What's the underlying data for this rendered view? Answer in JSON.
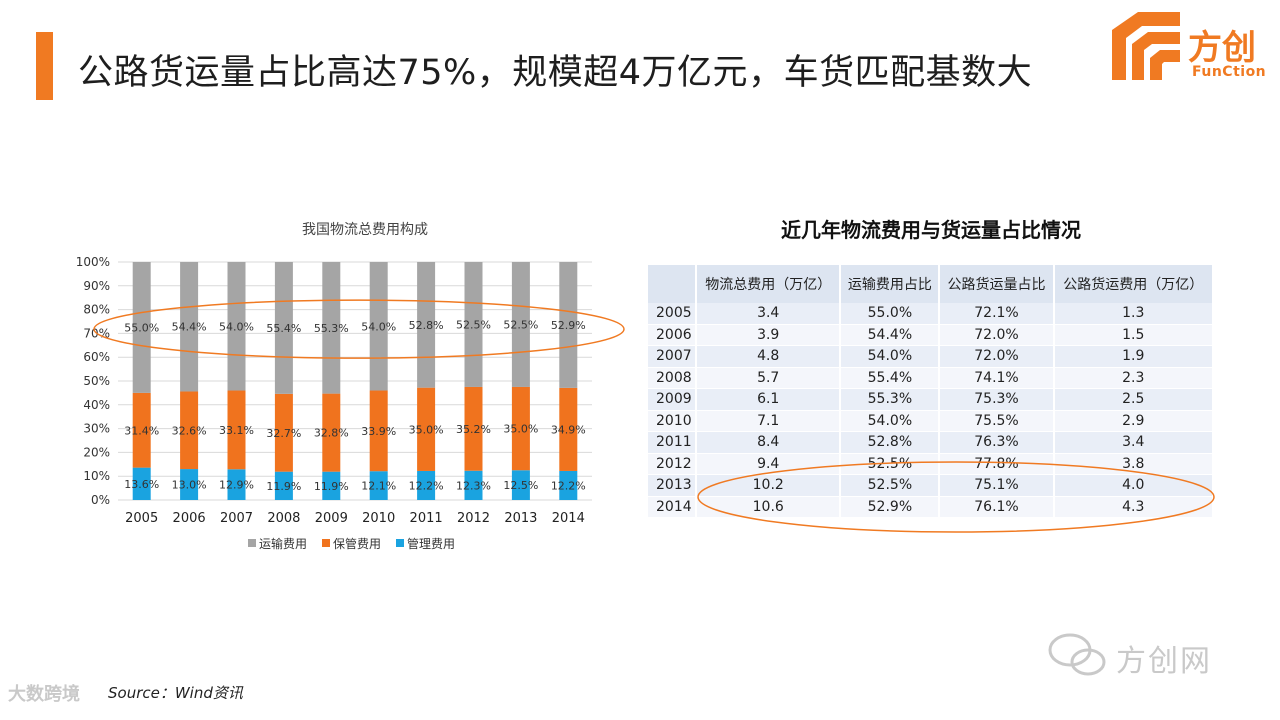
{
  "slide": {
    "title": "公路货运量占比高达75%，规模超4万亿元，车货匹配基数大",
    "source": "Source：Wind资讯",
    "accent_color": "#f07a22"
  },
  "logo": {
    "text": "方创",
    "sub": "FunCtion",
    "icon": "function-logo-icon"
  },
  "watermarks": {
    "left": "大数跨境",
    "right": "方创网",
    "right_icon": "wechat-icon"
  },
  "chart_data": {
    "type": "bar",
    "stacked": true,
    "percent": true,
    "title": "我国物流总费用构成",
    "categories": [
      "2005",
      "2006",
      "2007",
      "2008",
      "2009",
      "2010",
      "2011",
      "2012",
      "2013",
      "2014"
    ],
    "series": [
      {
        "name": "管理费用",
        "color": "#1aa3e0",
        "values": [
          13.6,
          13.0,
          12.9,
          11.9,
          11.9,
          12.1,
          12.2,
          12.3,
          12.5,
          12.2
        ]
      },
      {
        "name": "保管费用",
        "color": "#f0731e",
        "values": [
          31.4,
          32.6,
          33.1,
          32.7,
          32.8,
          33.9,
          35.0,
          35.2,
          35.0,
          34.9
        ]
      },
      {
        "name": "运输费用",
        "color": "#a5a5a5",
        "values": [
          55.0,
          54.4,
          54.0,
          55.4,
          55.3,
          54.0,
          52.8,
          52.5,
          52.5,
          52.9
        ]
      }
    ],
    "yticks": [
      "0%",
      "10%",
      "20%",
      "30%",
      "40%",
      "50%",
      "60%",
      "70%",
      "80%",
      "90%",
      "100%"
    ],
    "ylim": [
      0,
      100
    ],
    "grid": true,
    "legend": "bottom",
    "legend_items": [
      "运输费用",
      "保管费用",
      "管理费用"
    ],
    "highlight_color": "#f07a22"
  },
  "table": {
    "title": "近几年物流费用与货运量占比情况",
    "columns": [
      "",
      "物流总费用（万亿）",
      "运输费用占比",
      "公路货运量占比",
      "公路货运费用（万亿）"
    ],
    "rows": [
      [
        "2005",
        "3.4",
        "55.0%",
        "72.1%",
        "1.3"
      ],
      [
        "2006",
        "3.9",
        "54.4%",
        "72.0%",
        "1.5"
      ],
      [
        "2007",
        "4.8",
        "54.0%",
        "72.0%",
        "1.9"
      ],
      [
        "2008",
        "5.7",
        "55.4%",
        "74.1%",
        "2.3"
      ],
      [
        "2009",
        "6.1",
        "55.3%",
        "75.3%",
        "2.5"
      ],
      [
        "2010",
        "7.1",
        "54.0%",
        "75.5%",
        "2.9"
      ],
      [
        "2011",
        "8.4",
        "52.8%",
        "76.3%",
        "3.4"
      ],
      [
        "2012",
        "9.4",
        "52.5%",
        "77.8%",
        "3.8"
      ],
      [
        "2013",
        "10.2",
        "52.5%",
        "75.1%",
        "4.0"
      ],
      [
        "2014",
        "10.6",
        "52.9%",
        "76.1%",
        "4.3"
      ]
    ]
  }
}
